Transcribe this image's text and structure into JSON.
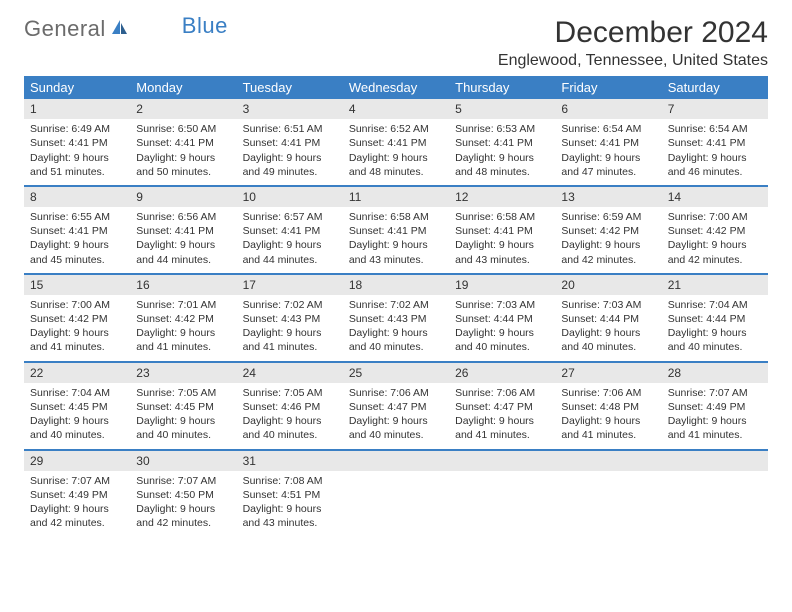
{
  "brand": {
    "part1": "General",
    "part2": "Blue"
  },
  "title": "December 2024",
  "location": "Englewood, Tennessee, United States",
  "colors": {
    "header_bg": "#3a7fc4",
    "header_text": "#ffffff",
    "daynum_bg": "#e8e8e8",
    "border": "#3a7fc4",
    "text": "#333333",
    "logo_gray": "#6b6b6b",
    "logo_blue": "#3a7fc4"
  },
  "dow": [
    "Sunday",
    "Monday",
    "Tuesday",
    "Wednesday",
    "Thursday",
    "Friday",
    "Saturday"
  ],
  "weeks": [
    [
      {
        "num": "1",
        "sunrise": "Sunrise: 6:49 AM",
        "sunset": "Sunset: 4:41 PM",
        "day1": "Daylight: 9 hours",
        "day2": "and 51 minutes."
      },
      {
        "num": "2",
        "sunrise": "Sunrise: 6:50 AM",
        "sunset": "Sunset: 4:41 PM",
        "day1": "Daylight: 9 hours",
        "day2": "and 50 minutes."
      },
      {
        "num": "3",
        "sunrise": "Sunrise: 6:51 AM",
        "sunset": "Sunset: 4:41 PM",
        "day1": "Daylight: 9 hours",
        "day2": "and 49 minutes."
      },
      {
        "num": "4",
        "sunrise": "Sunrise: 6:52 AM",
        "sunset": "Sunset: 4:41 PM",
        "day1": "Daylight: 9 hours",
        "day2": "and 48 minutes."
      },
      {
        "num": "5",
        "sunrise": "Sunrise: 6:53 AM",
        "sunset": "Sunset: 4:41 PM",
        "day1": "Daylight: 9 hours",
        "day2": "and 48 minutes."
      },
      {
        "num": "6",
        "sunrise": "Sunrise: 6:54 AM",
        "sunset": "Sunset: 4:41 PM",
        "day1": "Daylight: 9 hours",
        "day2": "and 47 minutes."
      },
      {
        "num": "7",
        "sunrise": "Sunrise: 6:54 AM",
        "sunset": "Sunset: 4:41 PM",
        "day1": "Daylight: 9 hours",
        "day2": "and 46 minutes."
      }
    ],
    [
      {
        "num": "8",
        "sunrise": "Sunrise: 6:55 AM",
        "sunset": "Sunset: 4:41 PM",
        "day1": "Daylight: 9 hours",
        "day2": "and 45 minutes."
      },
      {
        "num": "9",
        "sunrise": "Sunrise: 6:56 AM",
        "sunset": "Sunset: 4:41 PM",
        "day1": "Daylight: 9 hours",
        "day2": "and 44 minutes."
      },
      {
        "num": "10",
        "sunrise": "Sunrise: 6:57 AM",
        "sunset": "Sunset: 4:41 PM",
        "day1": "Daylight: 9 hours",
        "day2": "and 44 minutes."
      },
      {
        "num": "11",
        "sunrise": "Sunrise: 6:58 AM",
        "sunset": "Sunset: 4:41 PM",
        "day1": "Daylight: 9 hours",
        "day2": "and 43 minutes."
      },
      {
        "num": "12",
        "sunrise": "Sunrise: 6:58 AM",
        "sunset": "Sunset: 4:41 PM",
        "day1": "Daylight: 9 hours",
        "day2": "and 43 minutes."
      },
      {
        "num": "13",
        "sunrise": "Sunrise: 6:59 AM",
        "sunset": "Sunset: 4:42 PM",
        "day1": "Daylight: 9 hours",
        "day2": "and 42 minutes."
      },
      {
        "num": "14",
        "sunrise": "Sunrise: 7:00 AM",
        "sunset": "Sunset: 4:42 PM",
        "day1": "Daylight: 9 hours",
        "day2": "and 42 minutes."
      }
    ],
    [
      {
        "num": "15",
        "sunrise": "Sunrise: 7:00 AM",
        "sunset": "Sunset: 4:42 PM",
        "day1": "Daylight: 9 hours",
        "day2": "and 41 minutes."
      },
      {
        "num": "16",
        "sunrise": "Sunrise: 7:01 AM",
        "sunset": "Sunset: 4:42 PM",
        "day1": "Daylight: 9 hours",
        "day2": "and 41 minutes."
      },
      {
        "num": "17",
        "sunrise": "Sunrise: 7:02 AM",
        "sunset": "Sunset: 4:43 PM",
        "day1": "Daylight: 9 hours",
        "day2": "and 41 minutes."
      },
      {
        "num": "18",
        "sunrise": "Sunrise: 7:02 AM",
        "sunset": "Sunset: 4:43 PM",
        "day1": "Daylight: 9 hours",
        "day2": "and 40 minutes."
      },
      {
        "num": "19",
        "sunrise": "Sunrise: 7:03 AM",
        "sunset": "Sunset: 4:44 PM",
        "day1": "Daylight: 9 hours",
        "day2": "and 40 minutes."
      },
      {
        "num": "20",
        "sunrise": "Sunrise: 7:03 AM",
        "sunset": "Sunset: 4:44 PM",
        "day1": "Daylight: 9 hours",
        "day2": "and 40 minutes."
      },
      {
        "num": "21",
        "sunrise": "Sunrise: 7:04 AM",
        "sunset": "Sunset: 4:44 PM",
        "day1": "Daylight: 9 hours",
        "day2": "and 40 minutes."
      }
    ],
    [
      {
        "num": "22",
        "sunrise": "Sunrise: 7:04 AM",
        "sunset": "Sunset: 4:45 PM",
        "day1": "Daylight: 9 hours",
        "day2": "and 40 minutes."
      },
      {
        "num": "23",
        "sunrise": "Sunrise: 7:05 AM",
        "sunset": "Sunset: 4:45 PM",
        "day1": "Daylight: 9 hours",
        "day2": "and 40 minutes."
      },
      {
        "num": "24",
        "sunrise": "Sunrise: 7:05 AM",
        "sunset": "Sunset: 4:46 PM",
        "day1": "Daylight: 9 hours",
        "day2": "and 40 minutes."
      },
      {
        "num": "25",
        "sunrise": "Sunrise: 7:06 AM",
        "sunset": "Sunset: 4:47 PM",
        "day1": "Daylight: 9 hours",
        "day2": "and 40 minutes."
      },
      {
        "num": "26",
        "sunrise": "Sunrise: 7:06 AM",
        "sunset": "Sunset: 4:47 PM",
        "day1": "Daylight: 9 hours",
        "day2": "and 41 minutes."
      },
      {
        "num": "27",
        "sunrise": "Sunrise: 7:06 AM",
        "sunset": "Sunset: 4:48 PM",
        "day1": "Daylight: 9 hours",
        "day2": "and 41 minutes."
      },
      {
        "num": "28",
        "sunrise": "Sunrise: 7:07 AM",
        "sunset": "Sunset: 4:49 PM",
        "day1": "Daylight: 9 hours",
        "day2": "and 41 minutes."
      }
    ],
    [
      {
        "num": "29",
        "sunrise": "Sunrise: 7:07 AM",
        "sunset": "Sunset: 4:49 PM",
        "day1": "Daylight: 9 hours",
        "day2": "and 42 minutes."
      },
      {
        "num": "30",
        "sunrise": "Sunrise: 7:07 AM",
        "sunset": "Sunset: 4:50 PM",
        "day1": "Daylight: 9 hours",
        "day2": "and 42 minutes."
      },
      {
        "num": "31",
        "sunrise": "Sunrise: 7:08 AM",
        "sunset": "Sunset: 4:51 PM",
        "day1": "Daylight: 9 hours",
        "day2": "and 43 minutes."
      },
      {
        "empty": true
      },
      {
        "empty": true
      },
      {
        "empty": true
      },
      {
        "empty": true
      }
    ]
  ]
}
